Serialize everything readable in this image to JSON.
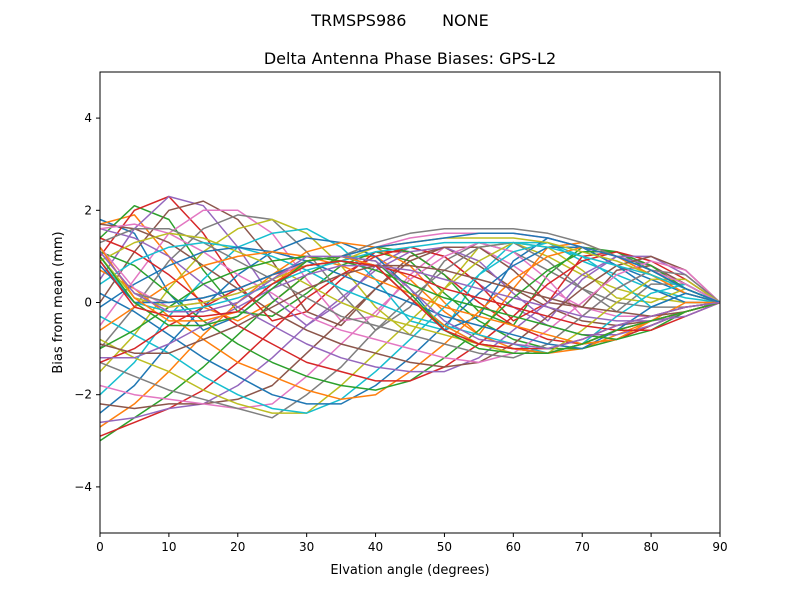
{
  "chart_data": {
    "type": "line",
    "suptitle": "TRMSPS986       NONE",
    "title": "Delta Antenna Phase Biases: GPS-L2",
    "xlabel": "Elvation angle (degrees)",
    "ylabel": "Bias from mean (mm)",
    "xlim": [
      0,
      90
    ],
    "ylim": [
      -5,
      5
    ],
    "xticks": [
      0,
      10,
      20,
      30,
      40,
      50,
      60,
      70,
      80,
      90
    ],
    "yticks": [
      -4,
      -2,
      0,
      2,
      4
    ],
    "ytick_labels": [
      "−4",
      "−2",
      "0",
      "2",
      "4"
    ],
    "grid": false,
    "legend": "none",
    "x": [
      0,
      5,
      10,
      15,
      20,
      25,
      30,
      35,
      40,
      45,
      50,
      55,
      60,
      65,
      70,
      75,
      80,
      85,
      90
    ],
    "colors": [
      "#1f77b4",
      "#ff7f0e",
      "#2ca02c",
      "#d62728",
      "#9467bd",
      "#8c564b",
      "#e377c2",
      "#7f7f7f",
      "#bcbd22",
      "#17becf"
    ],
    "series": [
      {
        "values": [
          1.8,
          1.5,
          0.2,
          -0.6,
          -0.3,
          0.3,
          0.9,
          1.0,
          0.8,
          0.1,
          -0.5,
          -0.9,
          -1.0,
          -1.1,
          -0.9,
          -0.6,
          -0.4,
          -0.2,
          0.0
        ]
      },
      {
        "values": [
          1.7,
          1.9,
          1.0,
          -0.1,
          -0.4,
          0.0,
          0.6,
          1.0,
          1.0,
          0.5,
          -0.2,
          -0.7,
          -1.0,
          -1.1,
          -1.0,
          -0.7,
          -0.4,
          -0.2,
          0.0
        ]
      },
      {
        "values": [
          1.4,
          2.1,
          1.8,
          0.7,
          -0.2,
          -0.3,
          0.2,
          0.8,
          1.1,
          0.9,
          0.2,
          -0.4,
          -0.8,
          -1.0,
          -1.0,
          -0.8,
          -0.5,
          -0.2,
          0.0
        ]
      },
      {
        "values": [
          1.0,
          2.0,
          2.3,
          1.5,
          0.4,
          -0.4,
          -0.2,
          0.5,
          1.1,
          1.1,
          0.6,
          0.0,
          -0.5,
          -0.8,
          -0.9,
          -0.8,
          -0.5,
          -0.2,
          0.0
        ]
      },
      {
        "values": [
          0.5,
          1.6,
          2.3,
          2.1,
          1.2,
          0.1,
          -0.5,
          0.0,
          0.8,
          1.2,
          1.0,
          0.4,
          -0.1,
          -0.5,
          -0.7,
          -0.7,
          -0.5,
          -0.2,
          0.0
        ]
      },
      {
        "values": [
          0.0,
          1.1,
          2.0,
          2.2,
          1.8,
          0.9,
          -0.2,
          -0.5,
          0.3,
          1.0,
          1.2,
          0.8,
          0.3,
          -0.1,
          -0.4,
          -0.5,
          -0.4,
          -0.2,
          0.0
        ]
      },
      {
        "values": [
          -0.5,
          0.5,
          1.5,
          2.0,
          2.0,
          1.5,
          0.5,
          -0.4,
          -0.3,
          0.6,
          1.2,
          1.2,
          0.8,
          0.3,
          -0.1,
          -0.3,
          -0.3,
          -0.1,
          0.0
        ]
      },
      {
        "values": [
          -1.0,
          -0.1,
          0.9,
          1.6,
          1.9,
          1.8,
          1.1,
          0.2,
          -0.6,
          -0.1,
          0.9,
          1.3,
          1.1,
          0.7,
          0.3,
          0.0,
          -0.1,
          -0.1,
          0.0
        ]
      },
      {
        "values": [
          -1.5,
          -0.7,
          0.3,
          1.1,
          1.6,
          1.8,
          1.5,
          0.8,
          -0.1,
          -0.7,
          0.3,
          1.2,
          1.3,
          1.0,
          0.6,
          0.3,
          0.1,
          0.0,
          0.0
        ]
      },
      {
        "values": [
          -2.0,
          -1.3,
          -0.3,
          0.5,
          1.2,
          1.5,
          1.6,
          1.2,
          0.5,
          -0.4,
          -0.6,
          0.6,
          1.3,
          1.3,
          0.9,
          0.6,
          0.3,
          0.1,
          0.0
        ]
      },
      {
        "values": [
          -2.4,
          -1.8,
          -0.9,
          -0.1,
          0.6,
          1.1,
          1.4,
          1.3,
          1.0,
          0.3,
          -0.6,
          -0.3,
          0.9,
          1.4,
          1.2,
          0.8,
          0.5,
          0.2,
          0.0
        ]
      },
      {
        "values": [
          -2.7,
          -2.2,
          -1.5,
          -0.7,
          0.0,
          0.6,
          1.1,
          1.3,
          1.2,
          0.8,
          0.0,
          -0.7,
          0.3,
          1.2,
          1.3,
          1.0,
          0.6,
          0.3,
          0.0
        ]
      },
      {
        "values": [
          -3.0,
          -2.5,
          -2.0,
          -1.4,
          -0.7,
          0.0,
          0.6,
          1.0,
          1.2,
          1.1,
          0.6,
          -0.2,
          -0.5,
          0.6,
          1.2,
          1.1,
          0.7,
          0.3,
          0.0
        ]
      },
      {
        "values": [
          -2.9,
          -2.6,
          -2.3,
          -1.9,
          -1.3,
          -0.6,
          0.1,
          0.6,
          1.0,
          1.2,
          1.0,
          0.4,
          -0.4,
          0.0,
          1.0,
          1.1,
          0.8,
          0.4,
          0.0
        ]
      },
      {
        "values": [
          -2.6,
          -2.5,
          -2.3,
          -2.2,
          -1.8,
          -1.2,
          -0.5,
          0.1,
          0.7,
          1.1,
          1.2,
          0.9,
          0.2,
          -0.4,
          0.5,
          1.0,
          0.8,
          0.4,
          0.0
        ]
      },
      {
        "values": [
          -2.2,
          -2.3,
          -2.2,
          -2.2,
          -2.1,
          -1.8,
          -1.1,
          -0.4,
          0.3,
          0.9,
          1.2,
          1.2,
          0.7,
          0.0,
          -0.1,
          0.7,
          0.8,
          0.4,
          0.0
        ]
      },
      {
        "values": [
          -1.8,
          -2.0,
          -2.1,
          -2.2,
          -2.3,
          -2.2,
          -1.6,
          -0.9,
          -0.2,
          0.5,
          1.0,
          1.3,
          1.1,
          0.5,
          -0.3,
          0.3,
          0.7,
          0.4,
          0.0
        ]
      },
      {
        "values": [
          -1.3,
          -1.6,
          -1.9,
          -2.1,
          -2.3,
          -2.5,
          -2.0,
          -1.4,
          -0.6,
          0.1,
          0.7,
          1.2,
          1.3,
          0.9,
          0.3,
          -0.2,
          0.4,
          0.4,
          0.0
        ]
      },
      {
        "values": [
          -0.8,
          -1.2,
          -1.5,
          -1.9,
          -2.2,
          -2.4,
          -2.4,
          -1.8,
          -1.1,
          -0.4,
          0.3,
          0.9,
          1.3,
          1.2,
          0.7,
          0.1,
          0.0,
          0.3,
          0.0
        ]
      },
      {
        "values": [
          -0.3,
          -0.7,
          -1.1,
          -1.6,
          -2.0,
          -2.3,
          -2.4,
          -2.1,
          -1.5,
          -0.8,
          -0.1,
          0.6,
          1.1,
          1.3,
          1.0,
          0.5,
          -0.1,
          0.2,
          0.0
        ]
      },
      {
        "values": [
          0.2,
          -0.2,
          -0.7,
          -1.2,
          -1.6,
          -2.0,
          -2.2,
          -2.2,
          -1.8,
          -1.2,
          -0.5,
          0.2,
          0.8,
          1.2,
          1.2,
          0.8,
          0.3,
          0.0,
          0.0
        ]
      },
      {
        "values": [
          0.7,
          0.3,
          -0.3,
          -0.8,
          -1.3,
          -1.6,
          -1.9,
          -2.1,
          -2.0,
          -1.5,
          -0.9,
          -0.2,
          0.5,
          1.0,
          1.2,
          1.0,
          0.6,
          0.2,
          0.0
        ]
      },
      {
        "values": [
          1.1,
          0.8,
          0.2,
          -0.4,
          -0.9,
          -1.3,
          -1.6,
          -1.8,
          -1.9,
          -1.7,
          -1.2,
          -0.6,
          0.1,
          0.7,
          1.1,
          1.1,
          0.8,
          0.3,
          0.0
        ]
      },
      {
        "values": [
          1.4,
          1.1,
          0.6,
          0.0,
          -0.5,
          -0.9,
          -1.3,
          -1.5,
          -1.7,
          -1.7,
          -1.4,
          -0.9,
          -0.3,
          0.4,
          0.9,
          1.1,
          0.9,
          0.5,
          0.0
        ]
      },
      {
        "values": [
          1.6,
          1.4,
          1.0,
          0.4,
          -0.1,
          -0.5,
          -0.9,
          -1.2,
          -1.4,
          -1.5,
          -1.5,
          -1.2,
          -0.6,
          0.0,
          0.6,
          1.0,
          1.0,
          0.6,
          0.0
        ]
      },
      {
        "values": [
          1.7,
          1.6,
          1.3,
          0.8,
          0.3,
          -0.2,
          -0.6,
          -0.9,
          -1.1,
          -1.3,
          -1.4,
          -1.3,
          -0.9,
          -0.3,
          0.3,
          0.8,
          1.0,
          0.7,
          0.0
        ]
      },
      {
        "values": [
          1.6,
          1.7,
          1.5,
          1.1,
          0.6,
          0.2,
          -0.3,
          -0.6,
          -0.8,
          -1.0,
          -1.2,
          -1.3,
          -1.1,
          -0.6,
          0.0,
          0.6,
          0.9,
          0.7,
          0.0
        ]
      },
      {
        "values": [
          1.3,
          1.6,
          1.6,
          1.3,
          0.9,
          0.5,
          0.1,
          -0.3,
          -0.5,
          -0.7,
          -0.9,
          -1.1,
          -1.2,
          -0.9,
          -0.3,
          0.3,
          0.7,
          0.6,
          0.0
        ]
      },
      {
        "values": [
          0.9,
          1.3,
          1.5,
          1.4,
          1.1,
          0.8,
          0.4,
          0.0,
          -0.3,
          -0.5,
          -0.7,
          -0.9,
          -1.1,
          -1.1,
          -0.6,
          0.0,
          0.5,
          0.5,
          0.0
        ]
      },
      {
        "values": [
          0.4,
          0.9,
          1.2,
          1.3,
          1.2,
          1.0,
          0.7,
          0.3,
          0.0,
          -0.3,
          -0.5,
          -0.7,
          -0.9,
          -1.1,
          -0.9,
          -0.3,
          0.2,
          0.4,
          0.0
        ]
      },
      {
        "values": [
          -0.1,
          0.4,
          0.8,
          1.1,
          1.2,
          1.1,
          0.9,
          0.6,
          0.3,
          0.0,
          -0.3,
          -0.5,
          -0.7,
          -0.9,
          -1.0,
          -0.6,
          -0.1,
          0.2,
          0.0
        ]
      },
      {
        "values": [
          -0.6,
          -0.1,
          0.4,
          0.8,
          1.0,
          1.1,
          1.0,
          0.8,
          0.5,
          0.2,
          -0.1,
          -0.3,
          -0.5,
          -0.7,
          -0.9,
          -0.8,
          -0.4,
          0.0,
          0.0
        ]
      },
      {
        "values": [
          -1.0,
          -0.6,
          -0.1,
          0.4,
          0.7,
          0.9,
          1.0,
          0.9,
          0.7,
          0.4,
          0.1,
          -0.1,
          -0.3,
          -0.5,
          -0.7,
          -0.8,
          -0.6,
          -0.2,
          0.0
        ]
      },
      {
        "values": [
          -1.3,
          -1.0,
          -0.5,
          -0.1,
          0.3,
          0.6,
          0.8,
          0.9,
          0.8,
          0.6,
          0.3,
          0.1,
          -0.1,
          -0.3,
          -0.5,
          -0.6,
          -0.6,
          -0.3,
          0.0
        ]
      },
      {
        "values": [
          -1.2,
          -1.2,
          -0.9,
          -0.5,
          -0.1,
          0.3,
          0.6,
          0.8,
          0.8,
          0.7,
          0.5,
          0.3,
          0.1,
          -0.1,
          -0.3,
          -0.4,
          -0.4,
          -0.3,
          0.0
        ]
      },
      {
        "values": [
          -0.9,
          -1.1,
          -1.1,
          -0.8,
          -0.5,
          -0.1,
          0.3,
          0.6,
          0.8,
          0.8,
          0.7,
          0.5,
          0.3,
          0.1,
          -0.1,
          -0.2,
          -0.3,
          -0.2,
          0.0
        ]
      },
      {
        "values": [
          1.2,
          0.3,
          -0.1,
          0.0,
          0.2,
          0.5,
          0.9,
          1.0,
          1.2,
          1.4,
          1.5,
          1.5,
          1.5,
          1.4,
          1.2,
          1.0,
          0.7,
          0.4,
          0.0
        ]
      },
      {
        "values": [
          1.1,
          0.2,
          0.0,
          0.1,
          0.3,
          0.6,
          0.9,
          1.0,
          1.3,
          1.5,
          1.6,
          1.6,
          1.6,
          1.5,
          1.3,
          1.0,
          0.7,
          0.3,
          0.0
        ]
      },
      {
        "values": [
          1.0,
          0.1,
          -0.1,
          0.0,
          0.2,
          0.5,
          0.8,
          0.9,
          1.2,
          1.3,
          1.4,
          1.4,
          1.4,
          1.3,
          1.1,
          0.9,
          0.6,
          0.3,
          0.0
        ]
      },
      {
        "values": [
          0.9,
          0.0,
          -0.2,
          -0.1,
          0.1,
          0.4,
          0.7,
          0.9,
          1.1,
          1.2,
          1.3,
          1.3,
          1.3,
          1.2,
          1.0,
          0.8,
          0.6,
          0.3,
          0.0
        ]
      },
      {
        "values": [
          0.8,
          0.0,
          0.0,
          0.1,
          0.3,
          0.6,
          0.9,
          1.0,
          1.2,
          1.3,
          1.4,
          1.5,
          1.5,
          1.4,
          1.2,
          1.0,
          0.7,
          0.3,
          0.0
        ]
      },
      {
        "values": [
          1.2,
          0.1,
          -0.4,
          -0.4,
          -0.2,
          0.4,
          0.9,
          1.0,
          0.8,
          0.1,
          -0.5,
          -0.9,
          -1.0,
          -1.1,
          -0.9,
          -0.6,
          -0.4,
          -0.2,
          0.0
        ]
      },
      {
        "values": [
          1.0,
          0.0,
          -0.5,
          -0.5,
          -0.3,
          0.3,
          0.9,
          1.0,
          0.9,
          0.2,
          -0.6,
          -1.0,
          -1.1,
          -1.1,
          -0.9,
          -0.6,
          -0.4,
          -0.2,
          0.0
        ]
      },
      {
        "values": [
          0.9,
          -0.1,
          -0.3,
          -0.3,
          -0.2,
          0.4,
          0.8,
          0.9,
          0.8,
          0.1,
          -0.6,
          -0.9,
          -1.0,
          -1.0,
          -0.8,
          -0.5,
          -0.3,
          -0.1,
          0.0
        ]
      },
      {
        "values": [
          1.1,
          0.2,
          -0.2,
          -0.2,
          0.0,
          0.5,
          1.0,
          1.0,
          0.9,
          0.3,
          -0.4,
          -0.8,
          -0.9,
          -1.0,
          -0.8,
          -0.5,
          -0.3,
          -0.1,
          0.0
        ]
      }
    ]
  }
}
